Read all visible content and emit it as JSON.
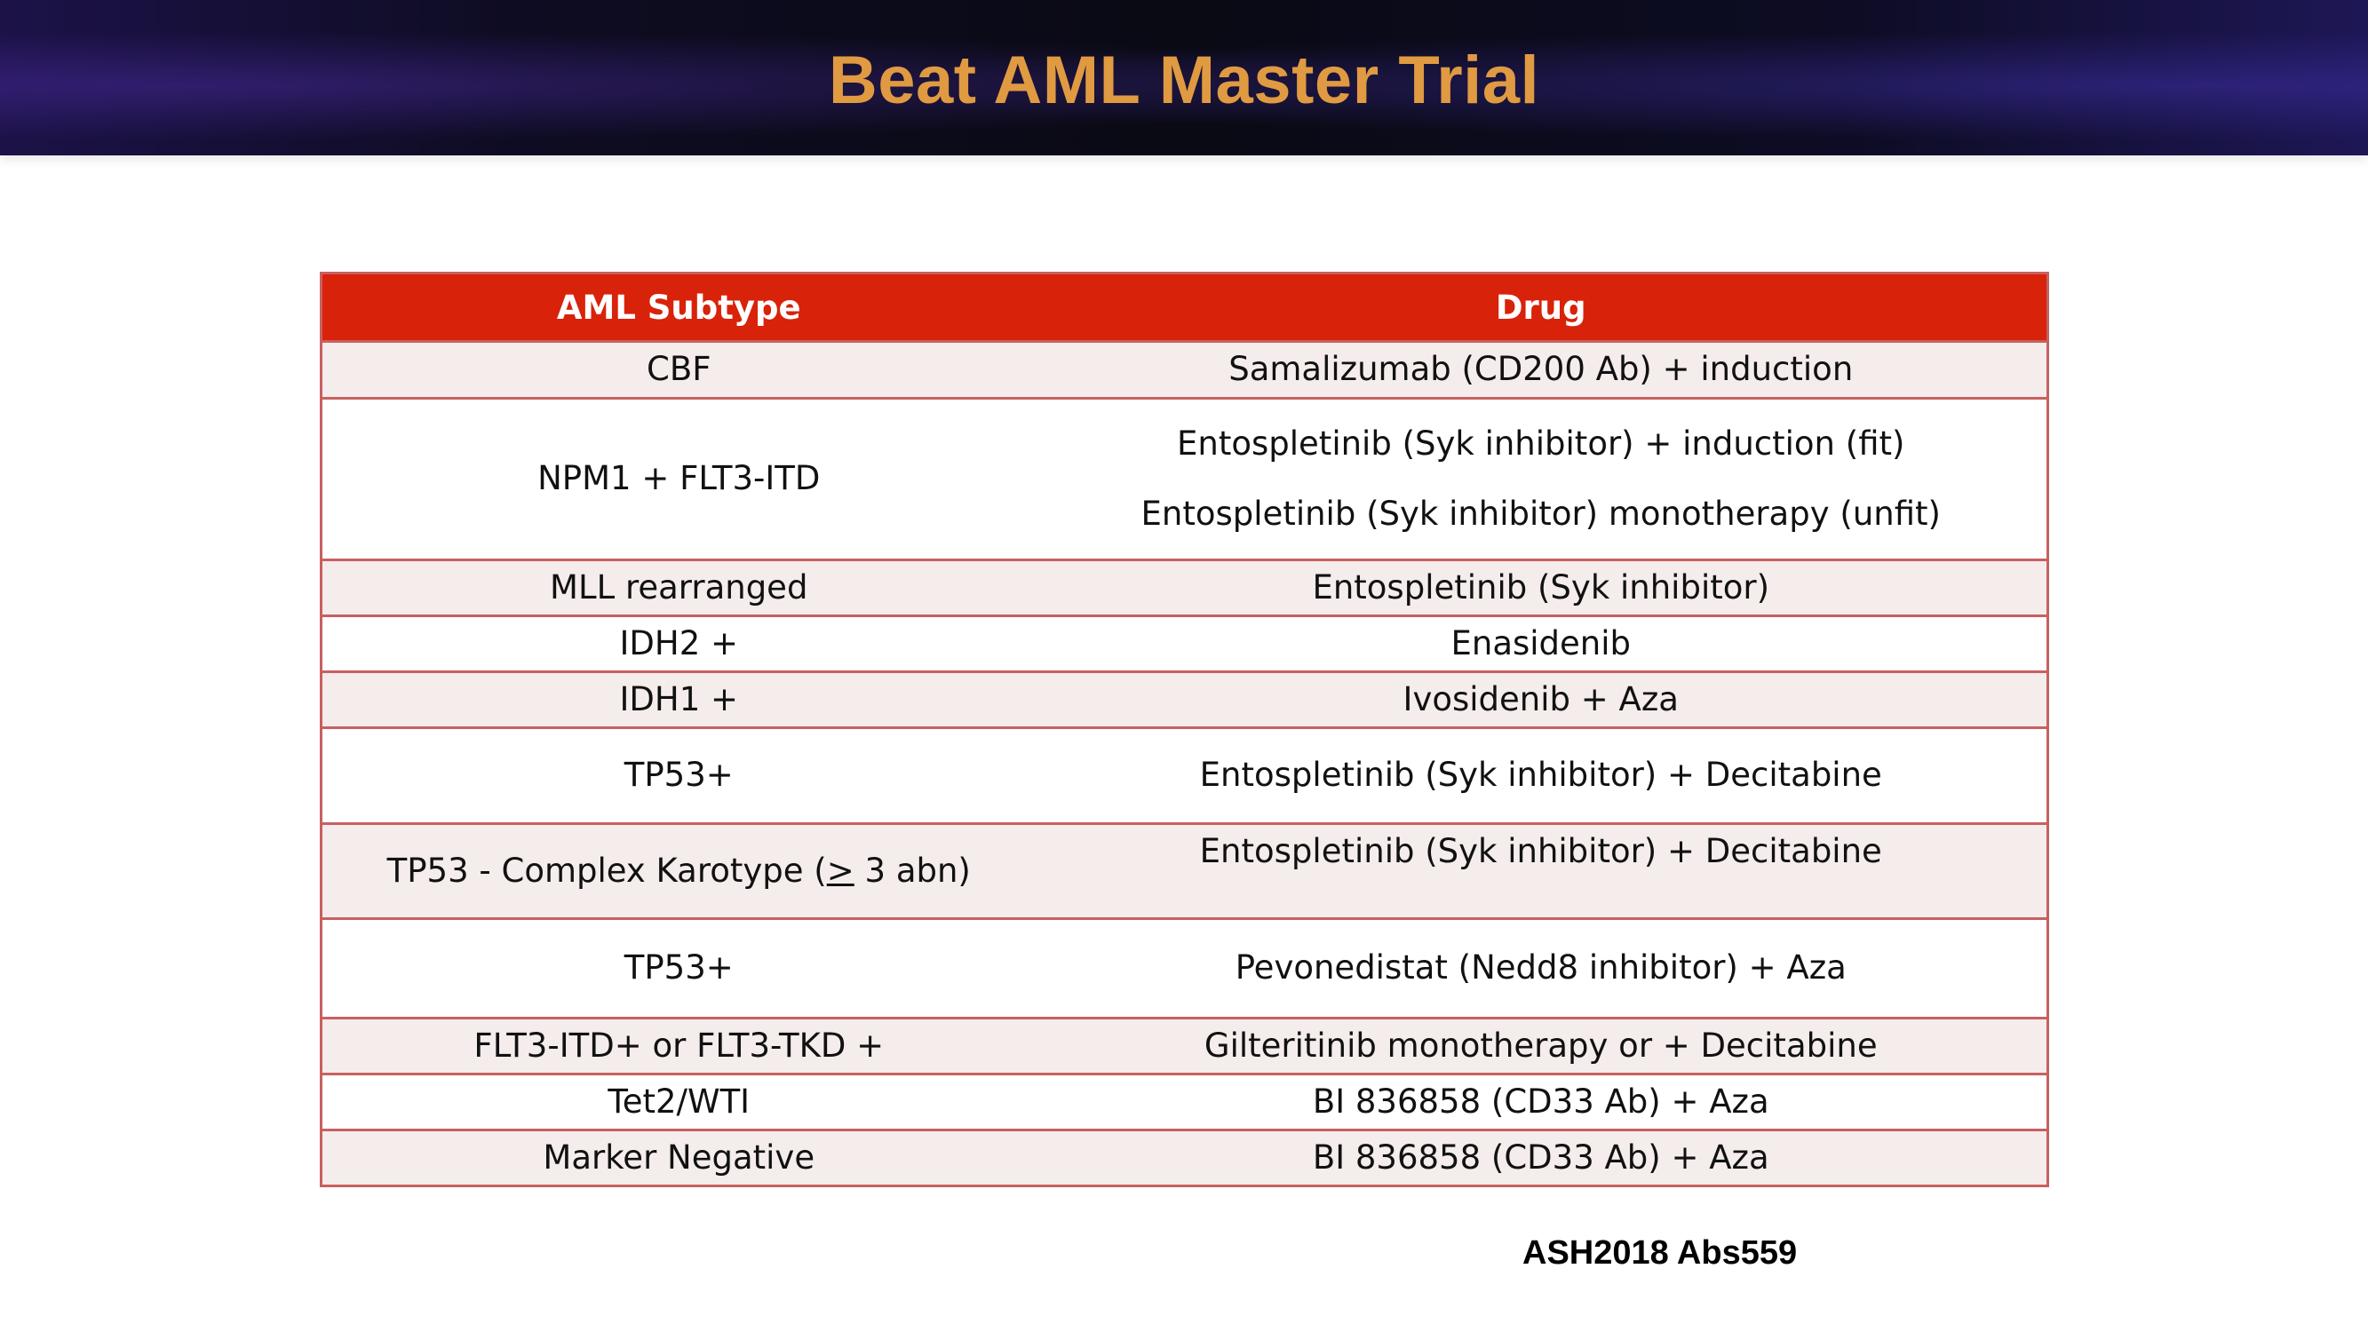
{
  "slide": {
    "title": "Beat AML Master Trial",
    "citation": "ASH2018 Abs559"
  },
  "table": {
    "headers": {
      "subtype": "AML Subtype",
      "drug": "Drug"
    },
    "rows": [
      {
        "subtype": "CBF",
        "drug": [
          "Samalizumab (CD200 Ab) + induction"
        ]
      },
      {
        "subtype": "NPM1 +  FLT3-ITD",
        "drug": [
          "Entospletinib  (Syk inhibitor) + induction (fit)",
          "Entospletinib  (Syk inhibitor) monotherapy (unfit)"
        ]
      },
      {
        "subtype": "MLL rearranged",
        "drug": [
          "Entospletinib (Syk inhibitor)"
        ]
      },
      {
        "subtype": "IDH2 +",
        "drug": [
          "Enasidenib"
        ]
      },
      {
        "subtype": "IDH1 +",
        "drug": [
          "Ivosidenib + Aza"
        ]
      },
      {
        "subtype": "TP53+",
        "drug": [
          "Entospletinib (Syk inhibitor) + Decitabine"
        ]
      },
      {
        "subtype_prefix": "TP53 - Complex Karotype (",
        "subtype_symbol": ">",
        "subtype_suffix": " 3 abn)",
        "drug": [
          "Entospletinib (Syk inhibitor) + Decitabine"
        ]
      },
      {
        "subtype": "TP53+",
        "drug": [
          "Pevonedistat (Nedd8 inhibitor) + Aza"
        ]
      },
      {
        "subtype": "FLT3-ITD+ or FLT3-TKD +",
        "drug": [
          "Gilteritinib monotherapy or + Decitabine"
        ]
      },
      {
        "subtype": "Tet2/WTI",
        "drug": [
          "BI 836858 (CD33 Ab) + Aza"
        ]
      },
      {
        "subtype": "Marker Negative",
        "drug": [
          "BI 836858 (CD33 Ab) + Aza"
        ]
      }
    ]
  },
  "colors": {
    "title": "#e09a42",
    "header_bg": "#d8230a",
    "row_band": "#f5ecec",
    "row_border": "#c96060"
  }
}
